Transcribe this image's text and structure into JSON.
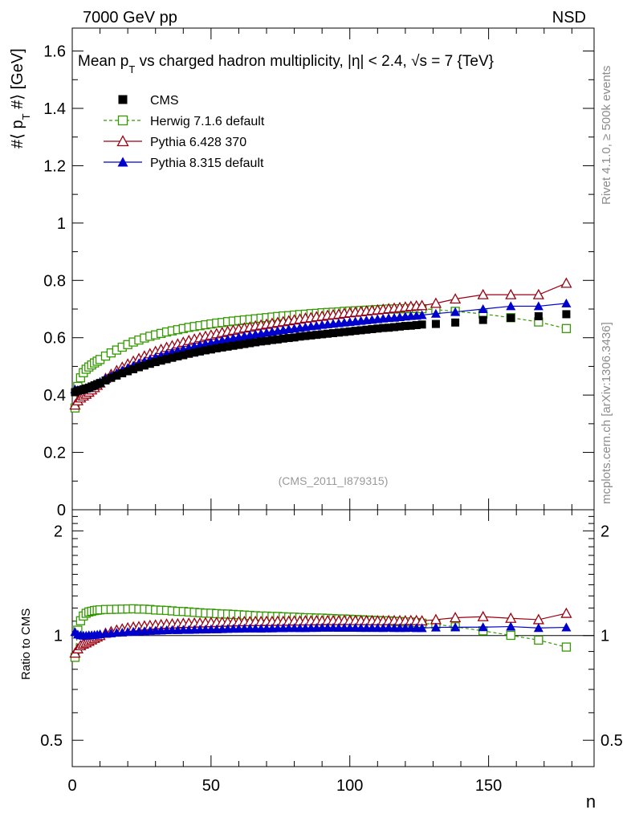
{
  "header": {
    "left": "7000 GeV pp",
    "right": "NSD"
  },
  "side_labels": {
    "rivet": "Rivet 4.1.0, ≥ 500k events",
    "mcplots": "mcplots.cern.ch [arXiv:1306.3436]"
  },
  "chart_data": [
    {
      "type": "scatter",
      "title": "Mean p_T vs charged hadron multiplicity, |η| < 2.4, √s = 7 {TeV}",
      "title_parts": {
        "pre": "Mean p",
        "sub": "T",
        "mid": " vs charged hadron multiplicity, |η| < 2.4, √",
        "post": "s = 7 {TeV}"
      },
      "ylabel": "#⟨ p_T #⟩ [GeV]",
      "ylabel_parts": {
        "pre": "#⟨ p",
        "sub": "T",
        "post": " #⟩ [GeV]"
      },
      "xlim": [
        0,
        188
      ],
      "ylim": [
        0,
        1.68
      ],
      "ytick_labels": [
        "0",
        "0.2",
        "0.4",
        "0.6",
        "0.8",
        "1",
        "1.2",
        "1.4",
        "1.6"
      ],
      "watermark": "(CMS_2011_I879315)",
      "legend": [
        "CMS",
        "Herwig 7.1.6 default",
        "Pythia 6.428 370",
        "Pythia 8.315 default"
      ],
      "series": [
        {
          "name": "CMS",
          "color": "#000000",
          "marker": "square-filled",
          "x": [
            1,
            2,
            3,
            4,
            5,
            6,
            7,
            8,
            9,
            10,
            12,
            14,
            16,
            18,
            20,
            22,
            24,
            26,
            28,
            30,
            32,
            34,
            36,
            38,
            40,
            42,
            44,
            46,
            48,
            50,
            52,
            54,
            56,
            58,
            60,
            62,
            64,
            66,
            68,
            70,
            72,
            74,
            76,
            78,
            80,
            82,
            84,
            86,
            88,
            90,
            92,
            94,
            96,
            98,
            100,
            102,
            104,
            106,
            108,
            110,
            112,
            114,
            116,
            118,
            120,
            122,
            124,
            126,
            131,
            138,
            148,
            158,
            168,
            178
          ],
          "y": [
            0.41,
            0.415,
            0.417,
            0.42,
            0.423,
            0.426,
            0.43,
            0.434,
            0.438,
            0.442,
            0.451,
            0.46,
            0.468,
            0.476,
            0.483,
            0.49,
            0.497,
            0.503,
            0.509,
            0.515,
            0.52,
            0.525,
            0.53,
            0.535,
            0.539,
            0.544,
            0.548,
            0.552,
            0.556,
            0.559,
            0.563,
            0.566,
            0.569,
            0.572,
            0.575,
            0.578,
            0.581,
            0.584,
            0.587,
            0.589,
            0.592,
            0.594,
            0.597,
            0.599,
            0.601,
            0.604,
            0.606,
            0.608,
            0.61,
            0.612,
            0.614,
            0.616,
            0.618,
            0.62,
            0.622,
            0.624,
            0.626,
            0.628,
            0.63,
            0.632,
            0.634,
            0.635,
            0.637,
            0.639,
            0.641,
            0.642,
            0.644,
            0.646,
            0.648,
            0.653,
            0.662,
            0.669,
            0.675,
            0.682
          ]
        },
        {
          "name": "Herwig 7.1.6 default",
          "color": "#339900",
          "marker": "square-open",
          "dashed": true,
          "x": [
            1,
            2,
            3,
            4,
            5,
            6,
            7,
            8,
            9,
            10,
            12,
            14,
            16,
            18,
            20,
            22,
            24,
            26,
            28,
            30,
            32,
            34,
            36,
            38,
            40,
            42,
            44,
            46,
            48,
            50,
            52,
            54,
            56,
            58,
            60,
            62,
            64,
            66,
            68,
            70,
            72,
            74,
            76,
            78,
            80,
            82,
            84,
            86,
            88,
            90,
            92,
            94,
            96,
            98,
            100,
            102,
            104,
            106,
            108,
            110,
            112,
            114,
            116,
            118,
            120,
            122,
            124,
            126,
            131,
            138,
            148,
            158,
            168,
            178
          ],
          "y": [
            0.355,
            0.43,
            0.46,
            0.478,
            0.49,
            0.498,
            0.505,
            0.512,
            0.518,
            0.524,
            0.536,
            0.547,
            0.557,
            0.567,
            0.576,
            0.585,
            0.592,
            0.599,
            0.605,
            0.61,
            0.615,
            0.62,
            0.624,
            0.628,
            0.632,
            0.636,
            0.639,
            0.642,
            0.645,
            0.648,
            0.651,
            0.653,
            0.656,
            0.658,
            0.66,
            0.662,
            0.664,
            0.666,
            0.668,
            0.67,
            0.672,
            0.674,
            0.676,
            0.677,
            0.679,
            0.681,
            0.682,
            0.684,
            0.685,
            0.687,
            0.688,
            0.689,
            0.69,
            0.692,
            0.693,
            0.694,
            0.695,
            0.696,
            0.697,
            0.698,
            0.699,
            0.7,
            0.7,
            0.701,
            0.701,
            0.702,
            0.702,
            0.701,
            0.698,
            0.692,
            0.683,
            0.67,
            0.655,
            0.632
          ]
        },
        {
          "name": "Pythia 6.428 370",
          "color": "#990011",
          "marker": "triangle-open",
          "x": [
            1,
            2,
            3,
            4,
            5,
            6,
            7,
            8,
            9,
            10,
            12,
            14,
            16,
            18,
            20,
            22,
            24,
            26,
            28,
            30,
            32,
            34,
            36,
            38,
            40,
            42,
            44,
            46,
            48,
            50,
            52,
            54,
            56,
            58,
            60,
            62,
            64,
            66,
            68,
            70,
            72,
            74,
            76,
            78,
            80,
            82,
            84,
            86,
            88,
            90,
            92,
            94,
            96,
            98,
            100,
            102,
            104,
            106,
            108,
            110,
            112,
            114,
            116,
            118,
            120,
            122,
            124,
            126,
            131,
            138,
            148,
            158,
            168,
            178
          ],
          "y": [
            0.365,
            0.38,
            0.39,
            0.397,
            0.403,
            0.41,
            0.418,
            0.426,
            0.434,
            0.442,
            0.458,
            0.472,
            0.485,
            0.497,
            0.508,
            0.518,
            0.527,
            0.536,
            0.544,
            0.552,
            0.559,
            0.566,
            0.572,
            0.578,
            0.584,
            0.59,
            0.595,
            0.6,
            0.605,
            0.609,
            0.614,
            0.618,
            0.622,
            0.626,
            0.63,
            0.634,
            0.637,
            0.641,
            0.644,
            0.647,
            0.65,
            0.653,
            0.656,
            0.659,
            0.662,
            0.665,
            0.668,
            0.67,
            0.673,
            0.675,
            0.678,
            0.68,
            0.682,
            0.685,
            0.687,
            0.689,
            0.691,
            0.693,
            0.695,
            0.697,
            0.699,
            0.701,
            0.703,
            0.705,
            0.707,
            0.709,
            0.711,
            0.712,
            0.72,
            0.735,
            0.75,
            0.75,
            0.75,
            0.79
          ]
        },
        {
          "name": "Pythia 8.315 default",
          "color": "#0000cc",
          "marker": "triangle-filled",
          "x": [
            1,
            2,
            3,
            4,
            5,
            6,
            7,
            8,
            9,
            10,
            12,
            14,
            16,
            18,
            20,
            22,
            24,
            26,
            28,
            30,
            32,
            34,
            36,
            38,
            40,
            42,
            44,
            46,
            48,
            50,
            52,
            54,
            56,
            58,
            60,
            62,
            64,
            66,
            68,
            70,
            72,
            74,
            76,
            78,
            80,
            82,
            84,
            86,
            88,
            90,
            92,
            94,
            96,
            98,
            100,
            102,
            104,
            106,
            108,
            110,
            112,
            114,
            116,
            118,
            120,
            122,
            124,
            126,
            131,
            138,
            148,
            158,
            168,
            178
          ],
          "y": [
            0.42,
            0.418,
            0.418,
            0.42,
            0.423,
            0.427,
            0.431,
            0.436,
            0.441,
            0.446,
            0.457,
            0.467,
            0.477,
            0.486,
            0.495,
            0.503,
            0.511,
            0.518,
            0.525,
            0.532,
            0.538,
            0.544,
            0.55,
            0.555,
            0.56,
            0.565,
            0.57,
            0.575,
            0.579,
            0.583,
            0.587,
            0.591,
            0.595,
            0.599,
            0.602,
            0.606,
            0.609,
            0.612,
            0.615,
            0.618,
            0.621,
            0.624,
            0.627,
            0.63,
            0.632,
            0.635,
            0.637,
            0.64,
            0.642,
            0.645,
            0.647,
            0.649,
            0.651,
            0.653,
            0.655,
            0.657,
            0.659,
            0.661,
            0.663,
            0.665,
            0.667,
            0.669,
            0.67,
            0.672,
            0.674,
            0.676,
            0.677,
            0.679,
            0.684,
            0.69,
            0.7,
            0.71,
            0.71,
            0.72
          ]
        }
      ]
    },
    {
      "type": "scatter",
      "ylabel": "Ratio to CMS",
      "xlabel": "n",
      "xlim": [
        0,
        188
      ],
      "ylim": [
        0.42,
        2.3
      ],
      "yscale": "log",
      "ytick_labels": [
        "0.5",
        "1",
        "2"
      ],
      "xtick_labels": [
        "0",
        "50",
        "100",
        "150"
      ],
      "reference_line": 1
    }
  ]
}
